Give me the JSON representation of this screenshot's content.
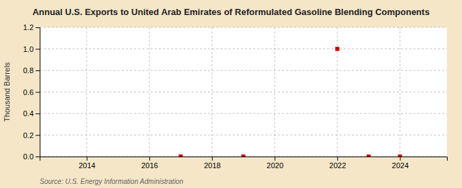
{
  "chart_data": {
    "type": "scatter",
    "title": "Annual U.S. Exports to United Arab Emirates of Reformulated Gasoline Blending Components",
    "y_label": "Thousand Barrels",
    "annotations": [
      "Source: U.S. Energy Information Administration"
    ],
    "x": [
      2017,
      2019,
      2022,
      2023,
      2024
    ],
    "values": [
      0.0,
      0.0,
      1.0,
      0.0,
      0.0
    ],
    "color": "#cc0000",
    "marker": "square",
    "xlim": [
      2012.5,
      2025.5
    ],
    "ylim": [
      0.0,
      1.2
    ],
    "xticks": [
      2014,
      2016,
      2018,
      2020,
      2022,
      2024
    ],
    "yticks": [
      {
        "value": 0.0,
        "label": "0.0"
      },
      {
        "value": 0.2,
        "label": "0.2"
      },
      {
        "value": 0.4,
        "label": "0.4"
      },
      {
        "value": 0.6,
        "label": "0.6"
      },
      {
        "value": 0.8,
        "label": "0.8"
      },
      {
        "value": 1.0,
        "label": "1.0"
      },
      {
        "value": 1.2,
        "label": "1.2"
      }
    ],
    "grid": true
  }
}
